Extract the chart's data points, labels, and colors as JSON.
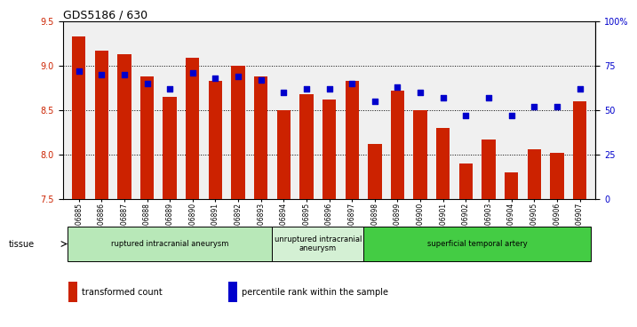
{
  "title": "GDS5186 / 630",
  "samples": [
    "GSM1306885",
    "GSM1306886",
    "GSM1306887",
    "GSM1306888",
    "GSM1306889",
    "GSM1306890",
    "GSM1306891",
    "GSM1306892",
    "GSM1306893",
    "GSM1306894",
    "GSM1306895",
    "GSM1306896",
    "GSM1306897",
    "GSM1306898",
    "GSM1306899",
    "GSM1306900",
    "GSM1306901",
    "GSM1306902",
    "GSM1306903",
    "GSM1306904",
    "GSM1306905",
    "GSM1306906",
    "GSM1306907"
  ],
  "bar_values": [
    9.33,
    9.17,
    9.13,
    8.88,
    8.65,
    9.09,
    8.83,
    9.0,
    8.88,
    8.5,
    8.68,
    8.62,
    8.83,
    8.12,
    8.72,
    8.5,
    8.3,
    7.9,
    8.17,
    7.8,
    8.06,
    8.02,
    8.6
  ],
  "percentile_values": [
    72,
    70,
    70,
    65,
    62,
    71,
    68,
    69,
    67,
    60,
    62,
    62,
    65,
    55,
    63,
    60,
    57,
    47,
    57,
    47,
    52,
    52,
    62
  ],
  "ylim_left": [
    7.5,
    9.5
  ],
  "ylim_right": [
    0,
    100
  ],
  "yticks_left": [
    7.5,
    8.0,
    8.5,
    9.0,
    9.5
  ],
  "yticks_right": [
    0,
    25,
    50,
    75,
    100
  ],
  "ytick_labels_right": [
    "0",
    "25",
    "50",
    "75",
    "100%"
  ],
  "bar_color": "#cc2200",
  "dot_color": "#0000cc",
  "bg_color": "#f0f0f0",
  "groups": [
    {
      "label": "ruptured intracranial aneurysm",
      "start": 0,
      "end": 9,
      "color": "#b8e8b8"
    },
    {
      "label": "unruptured intracranial\naneurysm",
      "start": 9,
      "end": 13,
      "color": "#d4f0d4"
    },
    {
      "label": "superficial temporal artery",
      "start": 13,
      "end": 23,
      "color": "#44cc44"
    }
  ],
  "tissue_label": "tissue",
  "legend_items": [
    {
      "color": "#cc2200",
      "label": "transformed count"
    },
    {
      "color": "#0000cc",
      "label": "percentile rank within the sample"
    }
  ]
}
